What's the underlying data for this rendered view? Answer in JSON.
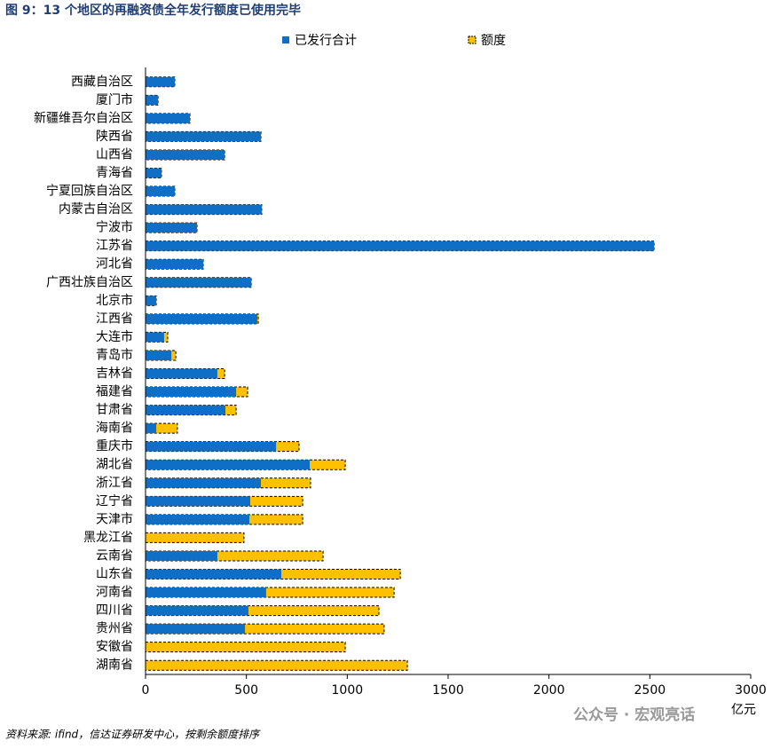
{
  "chart_data": {
    "type": "bar",
    "orientation": "horizontal",
    "title": "图 9：13 个地区的再融资债全年发行额度已使用完毕",
    "categories": [
      "西藏自治区",
      "厦门市",
      "新疆维吾尔自治区",
      "陕西省",
      "山西省",
      "青海省",
      "宁夏回族自治区",
      "内蒙古自治区",
      "宁波市",
      "江苏省",
      "河北省",
      "广西壮族自治区",
      "北京市",
      "江西省",
      "大连市",
      "青岛市",
      "吉林省",
      "福建省",
      "甘肃省",
      "海南省",
      "重庆市",
      "湖北省",
      "浙江省",
      "辽宁省",
      "天津市",
      "黑龙江省",
      "云南省",
      "山东省",
      "河南省",
      "四川省",
      "贵州省",
      "安徽省",
      "湖南省"
    ],
    "series": [
      {
        "name": "额度",
        "color": "#ffc000",
        "values": [
          145,
          62,
          220,
          572,
          392,
          79,
          145,
          576,
          255,
          2521,
          286,
          524,
          53,
          559,
          110,
          150,
          392,
          506,
          449,
          158,
          761,
          990,
          818,
          779,
          779,
          488,
          880,
          1263,
          1232,
          1157,
          1183,
          990,
          1298
        ]
      },
      {
        "name": "已发行合计",
        "color": "#0f6fc6",
        "values": [
          145,
          62,
          220,
          572,
          392,
          79,
          145,
          576,
          255,
          2521,
          286,
          524,
          53,
          554,
          92,
          128,
          356,
          449,
          396,
          53,
          647,
          814,
          572,
          519,
          515,
          0,
          356,
          673,
          598,
          510,
          493,
          0,
          0
        ]
      }
    ],
    "xlim": [
      0,
      3000
    ],
    "xticks": [
      0,
      500,
      1000,
      1500,
      2000,
      2500,
      3000
    ],
    "x_unit": "亿元",
    "source": "资料来源: ifind，信达证券研发中心，按剩余额度排序",
    "watermark": "公众号 · 宏观亮话"
  }
}
